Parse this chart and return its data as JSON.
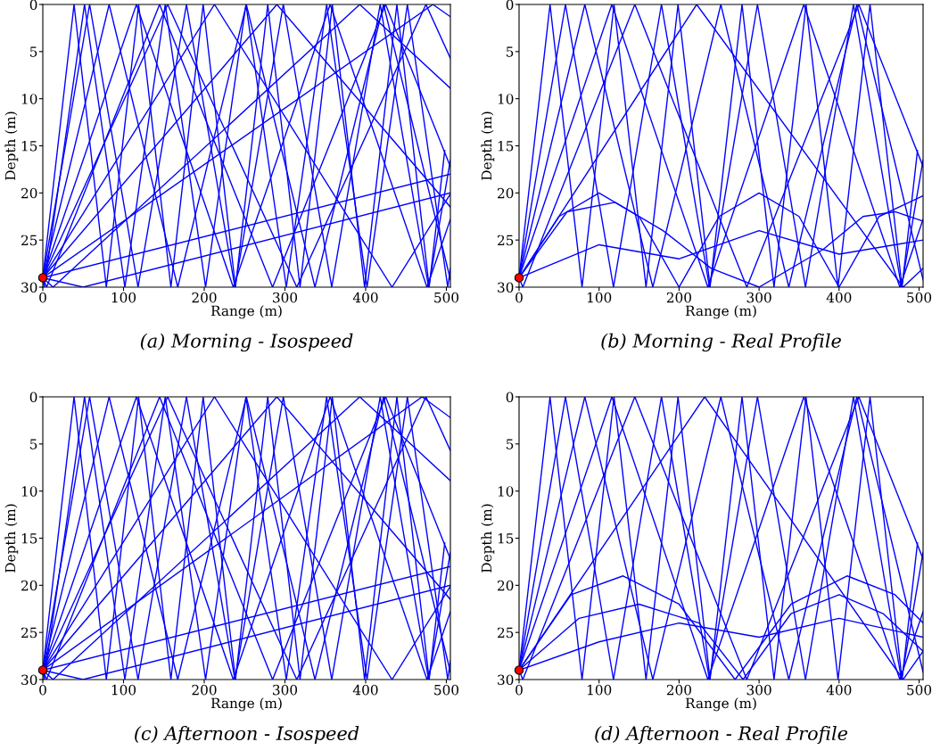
{
  "chart_data": [
    {
      "type": "line",
      "title": "(a) Morning - Isospeed",
      "xlabel": "Range (m)",
      "ylabel": "Depth (m)",
      "xlim": [
        0,
        505
      ],
      "ylim": [
        30,
        0
      ],
      "xticks": [
        0,
        100,
        200,
        300,
        400,
        500
      ],
      "yticks": [
        0,
        5,
        10,
        15,
        20,
        25,
        30
      ],
      "grid": false,
      "legend": false,
      "series": [
        {
          "color": "#0000ff",
          "x": [
            0,
            38.7,
            78.7,
            118.7,
            158.7,
            198.7,
            238.7,
            278.7,
            318.7,
            358.7,
            398.7,
            438.7,
            478.7,
            498
          ],
          "values": [
            29,
            0,
            30,
            0,
            30,
            0,
            30,
            0,
            30,
            0,
            30,
            0,
            30,
            15.5
          ]
        },
        {
          "color": "#0000ff",
          "x": [
            0,
            58,
            118,
            178,
            238,
            298,
            358,
            418,
            478,
            505
          ],
          "values": [
            29,
            0,
            30,
            0,
            30,
            0,
            30,
            0,
            30,
            16.5
          ]
        },
        {
          "color": "#0000ff",
          "x": [
            0,
            82.2,
            167.2,
            252.2,
            337.2,
            422.2,
            505
          ],
          "values": [
            29,
            0,
            30,
            0,
            30,
            0,
            29.2
          ]
        },
        {
          "color": "#0000ff",
          "x": [
            0,
            116,
            236,
            356,
            476,
            505
          ],
          "values": [
            29,
            0,
            30,
            0,
            30,
            22.8
          ]
        },
        {
          "color": "#0000ff",
          "x": [
            0,
            154.7,
            314.7,
            474.7,
            505
          ],
          "values": [
            29,
            0,
            30,
            0,
            5.7
          ]
        },
        {
          "color": "#0000ff",
          "x": [
            0,
            212.7,
            432.7,
            505
          ],
          "values": [
            29,
            0,
            30,
            20.1
          ]
        },
        {
          "color": "#0000ff",
          "x": [
            0,
            290,
            505
          ],
          "values": [
            29,
            0,
            21.5
          ]
        },
        {
          "color": "#0000ff",
          "x": [
            0,
            483.3,
            505
          ],
          "values": [
            29,
            0,
            1.3
          ]
        },
        {
          "color": "#0000ff",
          "x": [
            0,
            1.7,
            51.7,
            101.7,
            151.7,
            201.7,
            251.7,
            301.7,
            351.7,
            401.7,
            451.7,
            501.7,
            505
          ],
          "values": [
            29,
            30,
            0,
            30,
            0,
            30,
            0,
            30,
            0,
            30,
            0,
            30,
            28
          ]
        },
        {
          "color": "#0000ff",
          "x": [
            0,
            4.7,
            144.7,
            284.7,
            424.7,
            505
          ],
          "values": [
            29,
            30,
            0,
            30,
            0,
            17.2
          ]
        },
        {
          "color": "#0000ff",
          "x": [
            0,
            12.7,
            392.7,
            505
          ],
          "values": [
            29,
            30,
            0,
            8.9
          ]
        },
        {
          "color": "#0000ff",
          "x": [
            0,
            50,
            505
          ],
          "values": [
            29,
            30,
            20
          ]
        },
        {
          "color": "#0000ff",
          "x": [
            0,
            505
          ],
          "values": [
            29,
            18
          ]
        },
        {
          "type": "scatter",
          "marker": "circle",
          "color": "#ff0000",
          "x": [
            0
          ],
          "values": [
            29
          ]
        }
      ]
    },
    {
      "type": "line",
      "title": "(b) Morning - Real Profile",
      "xlabel": "Range (m)",
      "ylabel": "Depth (m)",
      "xlim": [
        0,
        505
      ],
      "ylim": [
        30,
        0
      ],
      "xticks": [
        0,
        100,
        200,
        300,
        400,
        500
      ],
      "yticks": [
        0,
        5,
        10,
        15,
        20,
        25,
        30
      ],
      "grid": false,
      "legend": false,
      "series": [
        {
          "color": "#0000ff",
          "x": [
            0,
            38.7,
            78.7,
            118.7,
            158.7,
            198.7,
            238.7,
            278.7,
            318.7,
            358.7,
            398.7,
            438.7,
            478.7,
            498
          ],
          "values": [
            29,
            0,
            30,
            0,
            30,
            0,
            30,
            0,
            30,
            0,
            30,
            0,
            30,
            15.5
          ]
        },
        {
          "color": "#0000ff",
          "x": [
            0,
            58,
            118,
            178,
            238,
            298,
            358,
            418,
            478,
            505
          ],
          "values": [
            29,
            0,
            30,
            0,
            30,
            0,
            30,
            0,
            30,
            16.5
          ]
        },
        {
          "color": "#0000ff",
          "x": [
            0,
            82.2,
            167.2,
            252.2,
            337.2,
            422.2,
            505
          ],
          "values": [
            29,
            0,
            30,
            0,
            30,
            0,
            29.2
          ]
        },
        {
          "color": "#0000ff",
          "x": [
            0,
            116,
            236,
            356,
            476,
            505
          ],
          "values": [
            29,
            0,
            30,
            0,
            30,
            22.8
          ]
        },
        {
          "color": "#0000ff",
          "x": [
            0,
            4.7,
            144.7,
            284.7,
            424.7,
            505
          ],
          "values": [
            29,
            30,
            0,
            30,
            0,
            17.2
          ]
        },
        {
          "color": "#0000ff",
          "x": [
            0,
            222,
            480,
            505
          ],
          "values": [
            29,
            0,
            30,
            28
          ]
        },
        {
          "color": "#0000ff",
          "x": [
            0,
            50,
            100,
            150,
            200,
            250,
            300,
            350,
            400,
            450,
            505
          ],
          "values": [
            29,
            22.5,
            20,
            22.5,
            30,
            22.5,
            20,
            22.5,
            30,
            22.5,
            20.3
          ]
        },
        {
          "color": "#0000ff",
          "x": [
            0,
            100,
            200,
            300,
            400,
            505
          ],
          "values": [
            29,
            25.5,
            27,
            24,
            26.5,
            25
          ]
        },
        {
          "color": "#0000ff",
          "x": [
            0,
            60,
            120,
            180,
            240,
            300,
            380,
            430,
            470,
            505
          ],
          "values": [
            29,
            22,
            21,
            24,
            28,
            30,
            26,
            22.5,
            22,
            23
          ]
        },
        {
          "type": "scatter",
          "marker": "circle",
          "color": "#ff0000",
          "x": [
            0
          ],
          "values": [
            29
          ]
        }
      ]
    },
    {
      "type": "line",
      "title": "(c) Afternoon - Isospeed",
      "xlabel": "Range (m)",
      "ylabel": "Depth (m)",
      "xlim": [
        0,
        505
      ],
      "ylim": [
        30,
        0
      ],
      "xticks": [
        0,
        100,
        200,
        300,
        400,
        500
      ],
      "yticks": [
        0,
        5,
        10,
        15,
        20,
        25,
        30
      ],
      "grid": false,
      "legend": false,
      "series": [
        {
          "color": "#0000ff",
          "x": [
            0,
            38.7,
            78.7,
            118.7,
            158.7,
            198.7,
            238.7,
            278.7,
            318.7,
            358.7,
            398.7,
            438.7,
            478.7,
            498
          ],
          "values": [
            29,
            0,
            30,
            0,
            30,
            0,
            30,
            0,
            30,
            0,
            30,
            0,
            30,
            15.5
          ]
        },
        {
          "color": "#0000ff",
          "x": [
            0,
            58,
            118,
            178,
            238,
            298,
            358,
            418,
            478,
            505
          ],
          "values": [
            29,
            0,
            30,
            0,
            30,
            0,
            30,
            0,
            30,
            16.5
          ]
        },
        {
          "color": "#0000ff",
          "x": [
            0,
            82.2,
            167.2,
            252.2,
            337.2,
            422.2,
            505
          ],
          "values": [
            29,
            0,
            30,
            0,
            30,
            0,
            29.2
          ]
        },
        {
          "color": "#0000ff",
          "x": [
            0,
            116,
            236,
            356,
            476,
            505
          ],
          "values": [
            29,
            0,
            30,
            0,
            30,
            22.8
          ]
        },
        {
          "color": "#0000ff",
          "x": [
            0,
            154.7,
            314.7,
            474.7,
            505
          ],
          "values": [
            29,
            0,
            30,
            0,
            5.7
          ]
        },
        {
          "color": "#0000ff",
          "x": [
            0,
            212.7,
            432.7,
            505
          ],
          "values": [
            29,
            0,
            30,
            20.1
          ]
        },
        {
          "color": "#0000ff",
          "x": [
            0,
            290,
            505
          ],
          "values": [
            29,
            0,
            21.5
          ]
        },
        {
          "color": "#0000ff",
          "x": [
            0,
            470,
            505
          ],
          "values": [
            29,
            0,
            2.2
          ]
        },
        {
          "color": "#0000ff",
          "x": [
            0,
            1.7,
            51.7,
            101.7,
            151.7,
            201.7,
            251.7,
            301.7,
            351.7,
            401.7,
            451.7,
            501.7,
            505
          ],
          "values": [
            29,
            30,
            0,
            30,
            0,
            30,
            0,
            30,
            0,
            30,
            0,
            30,
            28
          ]
        },
        {
          "color": "#0000ff",
          "x": [
            0,
            4.7,
            144.7,
            284.7,
            424.7,
            505
          ],
          "values": [
            29,
            30,
            0,
            30,
            0,
            17.2
          ]
        },
        {
          "color": "#0000ff",
          "x": [
            0,
            12.7,
            392.7,
            505
          ],
          "values": [
            29,
            30,
            0,
            8.9
          ]
        },
        {
          "color": "#0000ff",
          "x": [
            0,
            50,
            505
          ],
          "values": [
            29,
            30,
            20
          ]
        },
        {
          "color": "#0000ff",
          "x": [
            0,
            505
          ],
          "values": [
            29,
            18
          ]
        },
        {
          "type": "scatter",
          "marker": "circle",
          "color": "#ff0000",
          "x": [
            0
          ],
          "values": [
            29
          ]
        }
      ]
    },
    {
      "type": "line",
      "title": "(d) Afternoon - Real Profile",
      "xlabel": "Range (m)",
      "ylabel": "Depth (m)",
      "xlim": [
        0,
        505
      ],
      "ylim": [
        30,
        0
      ],
      "xticks": [
        0,
        100,
        200,
        300,
        400,
        500
      ],
      "yticks": [
        0,
        5,
        10,
        15,
        20,
        25,
        30
      ],
      "grid": false,
      "legend": false,
      "series": [
        {
          "color": "#0000ff",
          "x": [
            0,
            38.7,
            78.7,
            118.7,
            158.7,
            198.7,
            238.7,
            278.7,
            318.7,
            358.7,
            398.7,
            438.7,
            478.7,
            498
          ],
          "values": [
            29,
            0,
            30,
            0,
            30,
            0,
            30,
            0,
            30,
            0,
            30,
            0,
            30,
            15.5
          ]
        },
        {
          "color": "#0000ff",
          "x": [
            0,
            58,
            118,
            178,
            238,
            298,
            358,
            418,
            478,
            505
          ],
          "values": [
            29,
            0,
            30,
            0,
            30,
            0,
            30,
            0,
            30,
            16.5
          ]
        },
        {
          "color": "#0000ff",
          "x": [
            0,
            82.2,
            167.2,
            252.2,
            337.2,
            422.2,
            505
          ],
          "values": [
            29,
            0,
            30,
            0,
            30,
            0,
            29.2
          ]
        },
        {
          "color": "#0000ff",
          "x": [
            0,
            116,
            236,
            356,
            476,
            505
          ],
          "values": [
            29,
            0,
            30,
            0,
            30,
            22.8
          ]
        },
        {
          "color": "#0000ff",
          "x": [
            0,
            4.7,
            144.7,
            284.7,
            424.7,
            505
          ],
          "values": [
            29,
            30,
            0,
            30,
            0,
            17.2
          ]
        },
        {
          "color": "#0000ff",
          "x": [
            0,
            232,
            480,
            505
          ],
          "values": [
            29,
            0,
            30,
            27
          ]
        },
        {
          "color": "#0000ff",
          "x": [
            0,
            65,
            130,
            200,
            270,
            340,
            410,
            470,
            505
          ],
          "values": [
            29,
            21,
            19,
            22,
            30,
            22,
            19,
            21,
            24
          ]
        },
        {
          "color": "#0000ff",
          "x": [
            0,
            75,
            150,
            225,
            280,
            340,
            400,
            455,
            505
          ],
          "values": [
            29,
            23.5,
            22,
            24,
            30,
            23,
            21,
            23,
            27
          ]
        },
        {
          "color": "#0000ff",
          "x": [
            0,
            100,
            200,
            300,
            400,
            505
          ],
          "values": [
            29,
            26,
            24,
            25.5,
            23.5,
            25.5
          ]
        },
        {
          "type": "scatter",
          "marker": "circle",
          "color": "#ff0000",
          "x": [
            0
          ],
          "values": [
            29
          ]
        }
      ]
    }
  ]
}
